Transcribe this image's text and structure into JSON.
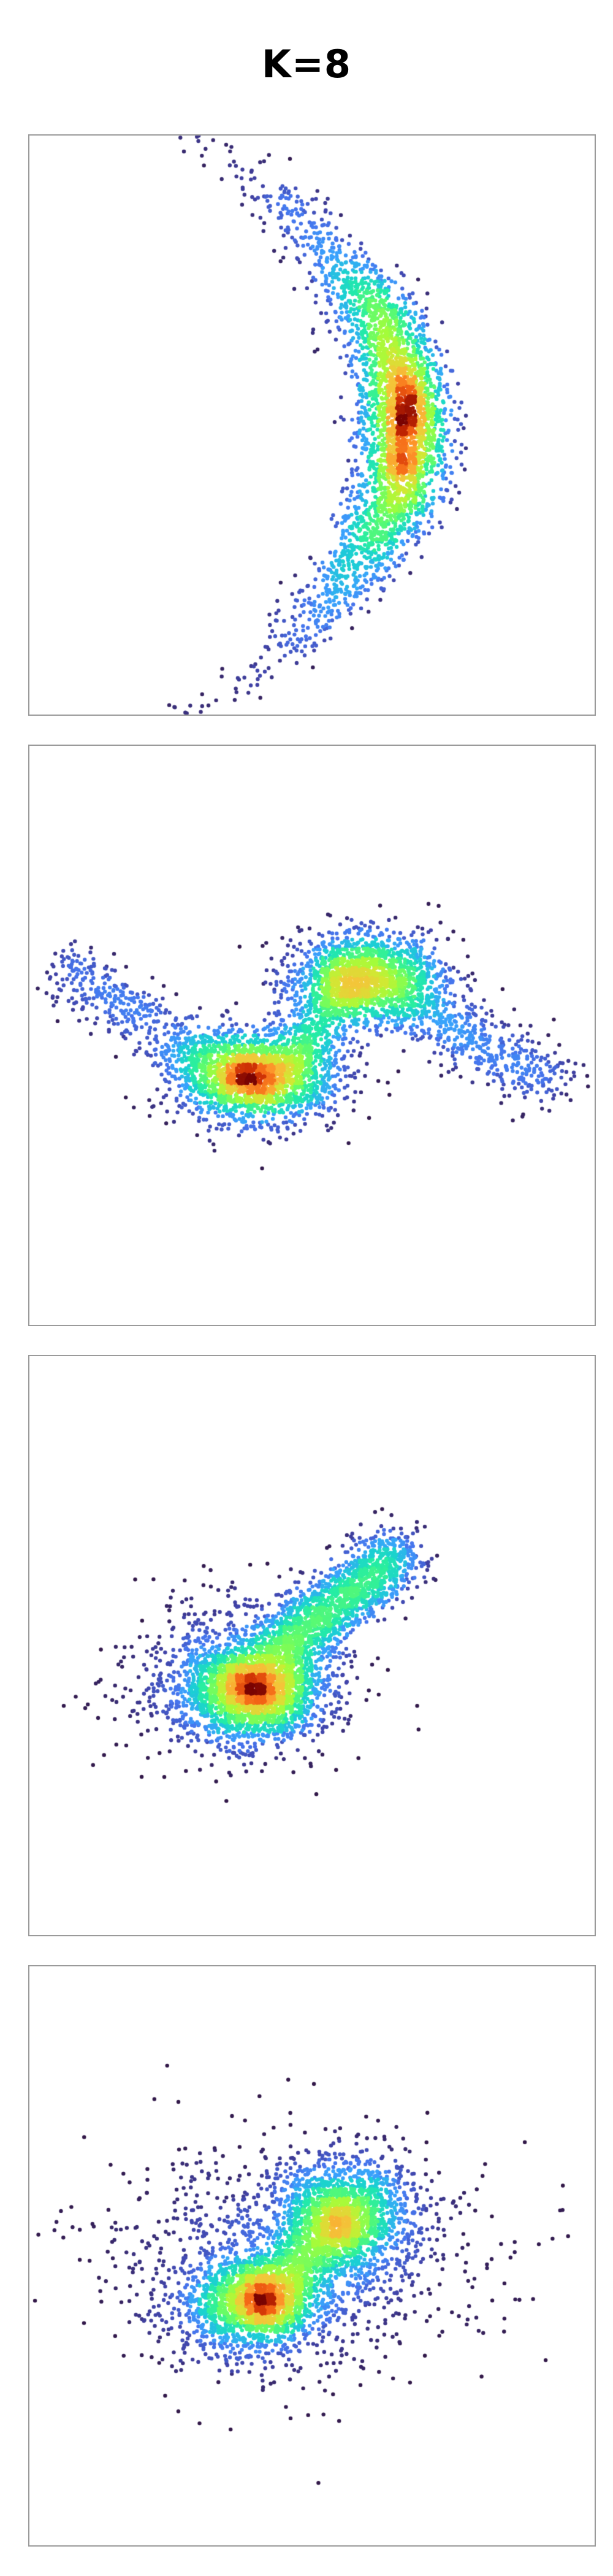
{
  "figure": {
    "title": "K=8"
  },
  "chart_data": [
    {
      "type": "scatter",
      "title": "",
      "xlabel": "",
      "ylabel": "",
      "density_colormap": "turbo",
      "low_density_color": "#2a1a4a",
      "high_density_color": "#7a0403",
      "components": [
        {
          "shape": "crescent",
          "center": [
            0.67,
            0.5
          ],
          "spread": [
            0.04,
            0.18
          ],
          "bend": -0.08,
          "weight": 1.0
        }
      ],
      "n_points": 3500
    },
    {
      "type": "scatter",
      "title": "",
      "xlabel": "",
      "ylabel": "",
      "density_colormap": "turbo",
      "components": [
        {
          "shape": "blob",
          "center": [
            0.4,
            0.57
          ],
          "spread": [
            0.07,
            0.04
          ],
          "weight": 0.45
        },
        {
          "shape": "blob",
          "center": [
            0.6,
            0.4
          ],
          "spread": [
            0.07,
            0.04
          ],
          "weight": 0.35
        },
        {
          "shape": "arm",
          "from": [
            0.05,
            0.38
          ],
          "to": [
            0.38,
            0.58
          ],
          "weight": 0.12
        },
        {
          "shape": "arm",
          "from": [
            0.46,
            0.55
          ],
          "to": [
            0.56,
            0.4
          ],
          "weight": 0.1
        },
        {
          "shape": "arm",
          "from": [
            0.62,
            0.42
          ],
          "to": [
            0.92,
            0.58
          ],
          "weight": 0.12
        }
      ],
      "n_points": 5000
    },
    {
      "type": "scatter",
      "title": "",
      "xlabel": "",
      "ylabel": "",
      "density_colormap": "turbo",
      "components": [
        {
          "shape": "blob",
          "center": [
            0.4,
            0.58
          ],
          "spread": [
            0.06,
            0.04
          ],
          "weight": 0.45
        },
        {
          "shape": "arm",
          "from": [
            0.42,
            0.52
          ],
          "to": [
            0.66,
            0.34
          ],
          "weight": 0.4
        },
        {
          "shape": "blob",
          "center": [
            0.36,
            0.56
          ],
          "spread": [
            0.1,
            0.07
          ],
          "weight": 0.2
        }
      ],
      "n_points": 4500
    },
    {
      "type": "scatter",
      "title": "",
      "xlabel": "",
      "ylabel": "",
      "density_colormap": "turbo",
      "components": [
        {
          "shape": "blob",
          "center": [
            0.4,
            0.58
          ],
          "spread": [
            0.06,
            0.04
          ],
          "weight": 0.4
        },
        {
          "shape": "blob",
          "center": [
            0.56,
            0.43
          ],
          "spread": [
            0.06,
            0.05
          ],
          "weight": 0.35
        },
        {
          "shape": "arm",
          "from": [
            0.42,
            0.57
          ],
          "to": [
            0.56,
            0.44
          ],
          "weight": 0.15
        },
        {
          "shape": "blob",
          "center": [
            0.46,
            0.51
          ],
          "spread": [
            0.16,
            0.1
          ],
          "weight": 0.25
        }
      ],
      "n_points": 5000
    }
  ]
}
